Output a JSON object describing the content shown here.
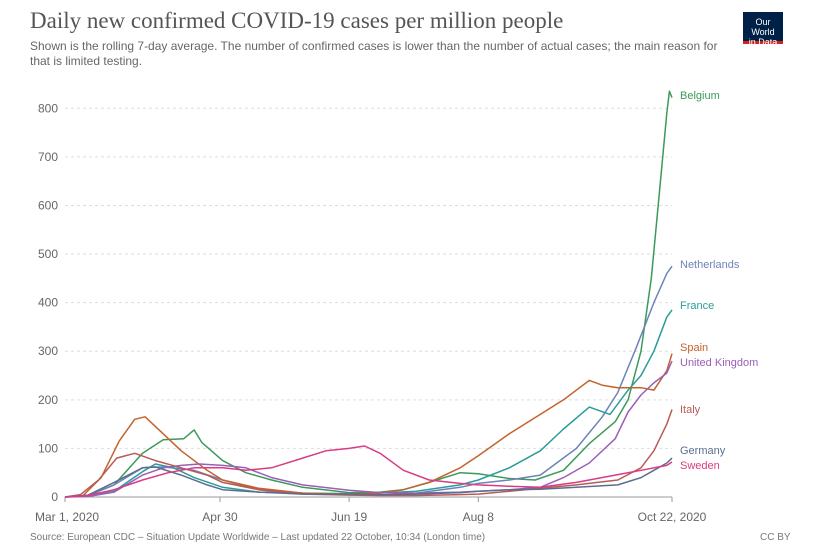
{
  "title": "Daily new confirmed COVID-19 cases per million people",
  "subtitle": "Shown is the rolling 7-day average. The number of confirmed cases is lower than the number of actual cases; the main reason for that is limited testing.",
  "logo": {
    "line1": "Our World",
    "line2": "in Data",
    "bg_color": "#002147",
    "accent_color": "#ce261e"
  },
  "footer": {
    "source": "Source: European CDC – Situation Update Worldwide – Last updated 22 October, 10:34 (London time)",
    "license": "CC BY"
  },
  "chart_data": {
    "type": "line",
    "title": "Daily new confirmed COVID-19 cases per million people",
    "xlabel": "",
    "ylabel": "",
    "x_range": [
      "2020-03-01",
      "2020-10-22"
    ],
    "ylim": [
      0,
      850
    ],
    "x_ticks": [
      {
        "date": "2020-03-01",
        "label": "Mar 1, 2020"
      },
      {
        "date": "2020-04-30",
        "label": "Apr 30"
      },
      {
        "date": "2020-06-19",
        "label": "Jun 19"
      },
      {
        "date": "2020-08-08",
        "label": "Aug 8"
      },
      {
        "date": "2020-10-22",
        "label": "Oct 22, 2020"
      }
    ],
    "y_ticks": [
      0,
      100,
      200,
      300,
      400,
      500,
      600,
      700,
      800
    ],
    "grid": "horizontal dashed",
    "legend": "right (end-of-line labels)",
    "series": [
      {
        "name": "Belgium",
        "color": "#3b9a5a",
        "points": [
          [
            "2020-03-01",
            0
          ],
          [
            "2020-03-10",
            3
          ],
          [
            "2020-03-20",
            25
          ],
          [
            "2020-03-31",
            90
          ],
          [
            "2020-04-08",
            118
          ],
          [
            "2020-04-16",
            120
          ],
          [
            "2020-04-20",
            138
          ],
          [
            "2020-04-23",
            112
          ],
          [
            "2020-05-01",
            75
          ],
          [
            "2020-05-10",
            50
          ],
          [
            "2020-05-20",
            35
          ],
          [
            "2020-06-01",
            20
          ],
          [
            "2020-06-19",
            9
          ],
          [
            "2020-07-01",
            10
          ],
          [
            "2020-07-10",
            15
          ],
          [
            "2020-07-20",
            30
          ],
          [
            "2020-08-01",
            50
          ],
          [
            "2020-08-08",
            48
          ],
          [
            "2020-08-20",
            38
          ],
          [
            "2020-08-30",
            35
          ],
          [
            "2020-09-10",
            55
          ],
          [
            "2020-09-20",
            110
          ],
          [
            "2020-09-30",
            155
          ],
          [
            "2020-10-05",
            200
          ],
          [
            "2020-10-10",
            300
          ],
          [
            "2020-10-14",
            450
          ],
          [
            "2020-10-17",
            620
          ],
          [
            "2020-10-20",
            790
          ],
          [
            "2020-10-21",
            835
          ],
          [
            "2020-10-22",
            822
          ]
        ]
      },
      {
        "name": "Netherlands",
        "color": "#6d83b8",
        "points": [
          [
            "2020-03-01",
            0
          ],
          [
            "2020-03-10",
            3
          ],
          [
            "2020-03-20",
            25
          ],
          [
            "2020-03-31",
            60
          ],
          [
            "2020-04-08",
            62
          ],
          [
            "2020-04-20",
            55
          ],
          [
            "2020-05-01",
            35
          ],
          [
            "2020-05-15",
            15
          ],
          [
            "2020-06-01",
            8
          ],
          [
            "2020-06-19",
            5
          ],
          [
            "2020-07-01",
            4
          ],
          [
            "2020-07-15",
            8
          ],
          [
            "2020-08-01",
            20
          ],
          [
            "2020-08-08",
            28
          ],
          [
            "2020-08-20",
            35
          ],
          [
            "2020-09-01",
            45
          ],
          [
            "2020-09-15",
            100
          ],
          [
            "2020-09-25",
            165
          ],
          [
            "2020-10-01",
            215
          ],
          [
            "2020-10-08",
            305
          ],
          [
            "2020-10-15",
            400
          ],
          [
            "2020-10-20",
            460
          ],
          [
            "2020-10-22",
            475
          ]
        ]
      },
      {
        "name": "France",
        "color": "#2a9d9a",
        "points": [
          [
            "2020-03-01",
            0
          ],
          [
            "2020-03-10",
            2
          ],
          [
            "2020-03-20",
            12
          ],
          [
            "2020-03-31",
            52
          ],
          [
            "2020-04-05",
            68
          ],
          [
            "2020-04-12",
            60
          ],
          [
            "2020-04-20",
            40
          ],
          [
            "2020-05-01",
            20
          ],
          [
            "2020-05-15",
            10
          ],
          [
            "2020-06-01",
            8
          ],
          [
            "2020-06-19",
            7
          ],
          [
            "2020-07-01",
            8
          ],
          [
            "2020-07-15",
            12
          ],
          [
            "2020-08-01",
            25
          ],
          [
            "2020-08-08",
            35
          ],
          [
            "2020-08-20",
            60
          ],
          [
            "2020-09-01",
            95
          ],
          [
            "2020-09-10",
            140
          ],
          [
            "2020-09-20",
            185
          ],
          [
            "2020-09-28",
            170
          ],
          [
            "2020-10-05",
            220
          ],
          [
            "2020-10-10",
            250
          ],
          [
            "2020-10-15",
            300
          ],
          [
            "2020-10-20",
            370
          ],
          [
            "2020-10-22",
            385
          ]
        ]
      },
      {
        "name": "Spain",
        "color": "#c4622d",
        "points": [
          [
            "2020-03-01",
            0
          ],
          [
            "2020-03-08",
            3
          ],
          [
            "2020-03-15",
            40
          ],
          [
            "2020-03-22",
            115
          ],
          [
            "2020-03-28",
            160
          ],
          [
            "2020-04-01",
            165
          ],
          [
            "2020-04-08",
            130
          ],
          [
            "2020-04-15",
            95
          ],
          [
            "2020-04-25",
            55
          ],
          [
            "2020-05-01",
            35
          ],
          [
            "2020-05-15",
            18
          ],
          [
            "2020-06-01",
            8
          ],
          [
            "2020-06-19",
            6
          ],
          [
            "2020-07-01",
            8
          ],
          [
            "2020-07-10",
            15
          ],
          [
            "2020-07-20",
            30
          ],
          [
            "2020-08-01",
            60
          ],
          [
            "2020-08-08",
            85
          ],
          [
            "2020-08-20",
            130
          ],
          [
            "2020-09-01",
            170
          ],
          [
            "2020-09-10",
            200
          ],
          [
            "2020-09-20",
            240
          ],
          [
            "2020-09-25",
            230
          ],
          [
            "2020-10-01",
            225
          ],
          [
            "2020-10-10",
            225
          ],
          [
            "2020-10-15",
            220
          ],
          [
            "2020-10-20",
            260
          ],
          [
            "2020-10-22",
            295
          ]
        ]
      },
      {
        "name": "United Kingdom",
        "color": "#9a5fb8",
        "points": [
          [
            "2020-03-01",
            0
          ],
          [
            "2020-03-10",
            1
          ],
          [
            "2020-03-20",
            10
          ],
          [
            "2020-03-31",
            45
          ],
          [
            "2020-04-08",
            60
          ],
          [
            "2020-04-15",
            65
          ],
          [
            "2020-04-22",
            68
          ],
          [
            "2020-05-01",
            65
          ],
          [
            "2020-05-10",
            60
          ],
          [
            "2020-05-20",
            40
          ],
          [
            "2020-06-01",
            25
          ],
          [
            "2020-06-19",
            14
          ],
          [
            "2020-07-01",
            9
          ],
          [
            "2020-07-15",
            8
          ],
          [
            "2020-08-01",
            10
          ],
          [
            "2020-08-08",
            12
          ],
          [
            "2020-08-20",
            15
          ],
          [
            "2020-09-01",
            20
          ],
          [
            "2020-09-10",
            40
          ],
          [
            "2020-09-20",
            70
          ],
          [
            "2020-09-30",
            120
          ],
          [
            "2020-10-05",
            175
          ],
          [
            "2020-10-10",
            210
          ],
          [
            "2020-10-15",
            235
          ],
          [
            "2020-10-20",
            255
          ],
          [
            "2020-10-22",
            280
          ]
        ]
      },
      {
        "name": "Italy",
        "color": "#b85b56",
        "points": [
          [
            "2020-03-01",
            0
          ],
          [
            "2020-03-07",
            5
          ],
          [
            "2020-03-14",
            35
          ],
          [
            "2020-03-21",
            80
          ],
          [
            "2020-03-28",
            90
          ],
          [
            "2020-04-05",
            75
          ],
          [
            "2020-04-15",
            60
          ],
          [
            "2020-04-25",
            45
          ],
          [
            "2020-05-01",
            30
          ],
          [
            "2020-05-15",
            15
          ],
          [
            "2020-06-01",
            6
          ],
          [
            "2020-06-19",
            4
          ],
          [
            "2020-07-01",
            3
          ],
          [
            "2020-07-15",
            3
          ],
          [
            "2020-08-01",
            5
          ],
          [
            "2020-08-08",
            6
          ],
          [
            "2020-08-20",
            12
          ],
          [
            "2020-09-01",
            18
          ],
          [
            "2020-09-15",
            25
          ],
          [
            "2020-10-01",
            35
          ],
          [
            "2020-10-10",
            60
          ],
          [
            "2020-10-15",
            95
          ],
          [
            "2020-10-20",
            150
          ],
          [
            "2020-10-22",
            180
          ]
        ]
      },
      {
        "name": "Germany",
        "color": "#5a6e90",
        "points": [
          [
            "2020-03-01",
            0
          ],
          [
            "2020-03-10",
            4
          ],
          [
            "2020-03-20",
            30
          ],
          [
            "2020-03-31",
            60
          ],
          [
            "2020-04-05",
            62
          ],
          [
            "2020-04-15",
            45
          ],
          [
            "2020-04-25",
            25
          ],
          [
            "2020-05-01",
            15
          ],
          [
            "2020-05-15",
            10
          ],
          [
            "2020-06-01",
            6
          ],
          [
            "2020-06-19",
            6
          ],
          [
            "2020-07-01",
            5
          ],
          [
            "2020-07-15",
            6
          ],
          [
            "2020-08-01",
            9
          ],
          [
            "2020-08-08",
            12
          ],
          [
            "2020-08-20",
            15
          ],
          [
            "2020-09-01",
            16
          ],
          [
            "2020-09-15",
            20
          ],
          [
            "2020-10-01",
            25
          ],
          [
            "2020-10-10",
            40
          ],
          [
            "2020-10-15",
            55
          ],
          [
            "2020-10-20",
            70
          ],
          [
            "2020-10-22",
            80
          ]
        ]
      },
      {
        "name": "Sweden",
        "color": "#d83c83",
        "points": [
          [
            "2020-03-01",
            0
          ],
          [
            "2020-03-10",
            3
          ],
          [
            "2020-03-20",
            15
          ],
          [
            "2020-03-31",
            35
          ],
          [
            "2020-04-10",
            50
          ],
          [
            "2020-04-20",
            60
          ],
          [
            "2020-05-01",
            60
          ],
          [
            "2020-05-10",
            55
          ],
          [
            "2020-05-20",
            60
          ],
          [
            "2020-06-01",
            80
          ],
          [
            "2020-06-10",
            95
          ],
          [
            "2020-06-19",
            100
          ],
          [
            "2020-06-25",
            105
          ],
          [
            "2020-07-01",
            90
          ],
          [
            "2020-07-10",
            55
          ],
          [
            "2020-07-20",
            35
          ],
          [
            "2020-08-01",
            28
          ],
          [
            "2020-08-08",
            25
          ],
          [
            "2020-08-20",
            22
          ],
          [
            "2020-09-01",
            20
          ],
          [
            "2020-09-15",
            30
          ],
          [
            "2020-09-30",
            45
          ],
          [
            "2020-10-10",
            55
          ],
          [
            "2020-10-20",
            65
          ],
          [
            "2020-10-22",
            72
          ]
        ]
      }
    ]
  }
}
